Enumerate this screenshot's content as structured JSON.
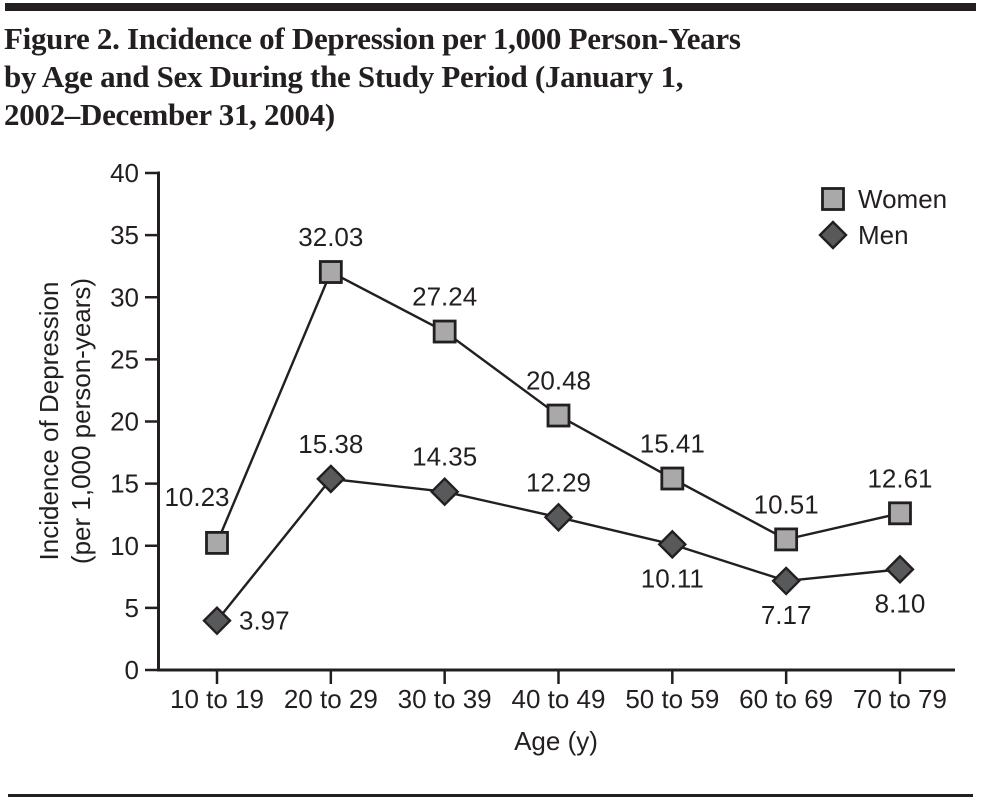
{
  "figure": {
    "title_lines": [
      "Figure 2. Incidence of Depression per 1,000 Person-Years",
      "by Age and Sex During the Study Period (January 1,",
      "2002–December 31, 2004)"
    ]
  },
  "chart_data": {
    "type": "line",
    "title": "Figure 2. Incidence of Depression per 1,000 Person-Years by Age and Sex During the Study Period (January 1, 2002–December 31, 2004)",
    "xlabel": "Age (y)",
    "ylabel": "Incidence of Depression (per 1,000 person-years)",
    "ylabel_lines": [
      "Incidence of Depression",
      "(per 1,000 person-years)"
    ],
    "categories": [
      "10 to 19",
      "20 to 29",
      "30 to 39",
      "40 to 49",
      "50 to 59",
      "60 to 69",
      "70 to 79"
    ],
    "ylim": [
      0,
      40
    ],
    "ytick_step": 5,
    "grid": false,
    "legend_position": "top-right",
    "line_color": "#231f20",
    "text_color": "#231f20",
    "series": [
      {
        "name": "Women",
        "marker": "square",
        "marker_fill": "#a9a9a9",
        "values": [
          10.23,
          32.03,
          27.24,
          20.48,
          15.41,
          10.51,
          12.61
        ],
        "label_positions": [
          "above-left",
          "above",
          "above",
          "above",
          "above",
          "above",
          "above"
        ]
      },
      {
        "name": "Men",
        "marker": "diamond",
        "marker_fill": "#58595b",
        "values": [
          3.97,
          15.38,
          14.35,
          12.29,
          10.11,
          7.17,
          8.1
        ],
        "label_positions": [
          "right",
          "above",
          "above",
          "above",
          "below",
          "below",
          "below"
        ]
      }
    ]
  }
}
